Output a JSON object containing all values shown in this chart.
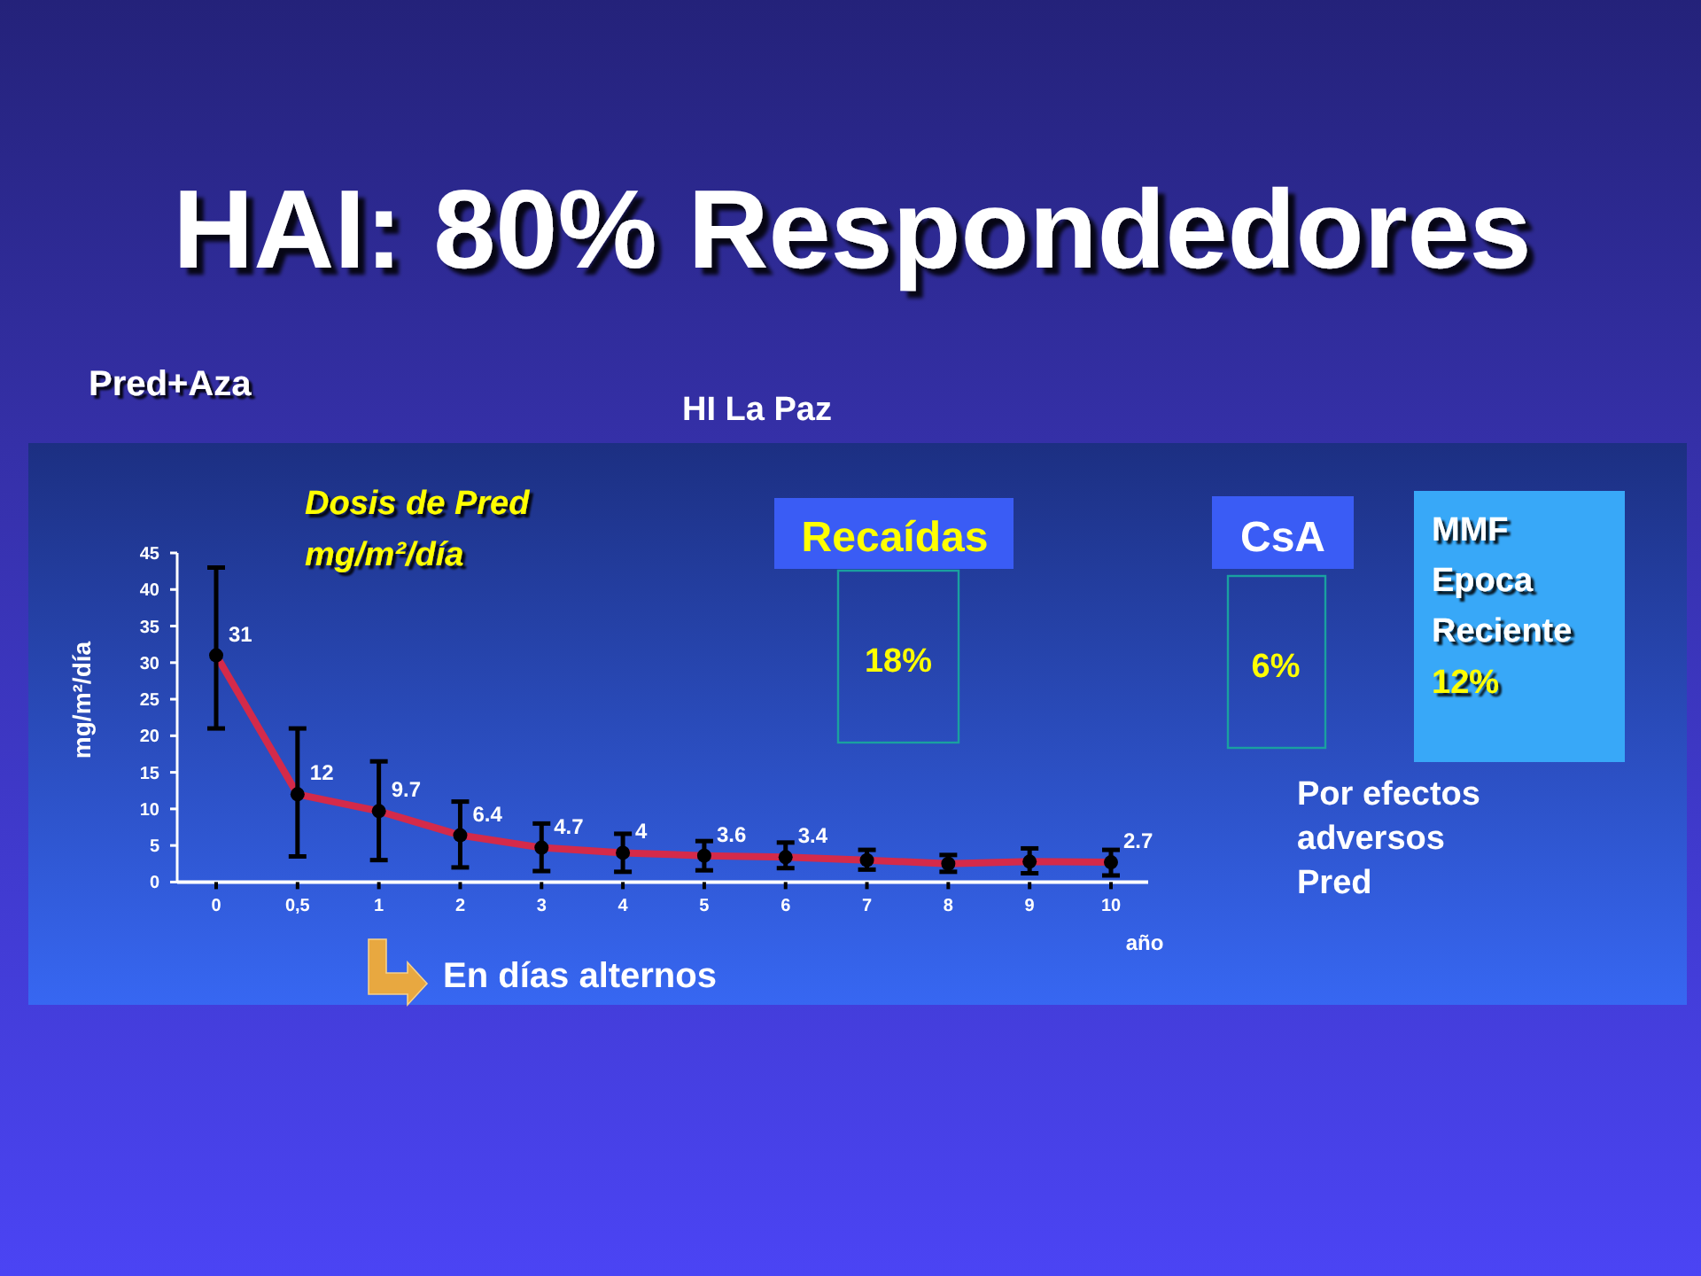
{
  "chart_data": {
    "type": "line",
    "title": "HAI: 80% Respondedores",
    "subtitle": "Dosis de Pred mg/m²/día",
    "ylabel": "mg/m²/día",
    "xlabel": "año",
    "annotations": [
      "Pred+Aza",
      "HI La Paz",
      "En días alternos",
      "Recaídas",
      "18%",
      "CsA",
      "6%",
      "MMF Epoca Reciente",
      "12%",
      "Por efectos adversos Pred"
    ],
    "categories": [
      "0",
      "0,5",
      "1",
      "2",
      "3",
      "4",
      "5",
      "6",
      "7",
      "8",
      "9",
      "10"
    ],
    "values": [
      31,
      12,
      9.7,
      6.4,
      4.7,
      4,
      3.6,
      3.4,
      3.0,
      2.5,
      2.8,
      2.7
    ],
    "errors": [
      [
        21,
        43
      ],
      [
        3.5,
        21
      ],
      [
        3,
        16.5
      ],
      [
        2,
        11
      ],
      [
        1.5,
        8
      ],
      [
        1.4,
        6.6
      ],
      [
        1.6,
        5.6
      ],
      [
        1.9,
        5.4
      ],
      [
        1.7,
        4.4
      ],
      [
        1.4,
        3.7
      ],
      [
        1.2,
        4.6
      ],
      [
        0.9,
        4.4
      ]
    ],
    "value_labels": [
      "31",
      "12",
      "9.7",
      "6.4",
      "4.7",
      "4",
      "3.6",
      "3.4",
      null,
      null,
      null,
      "2.7"
    ],
    "color": "#d42a4a",
    "marker": "circle",
    "line_style": "solid",
    "ylim": [
      0,
      45
    ],
    "yticks": [
      0,
      5,
      10,
      15,
      20,
      25,
      30,
      35,
      40,
      45
    ]
  }
}
